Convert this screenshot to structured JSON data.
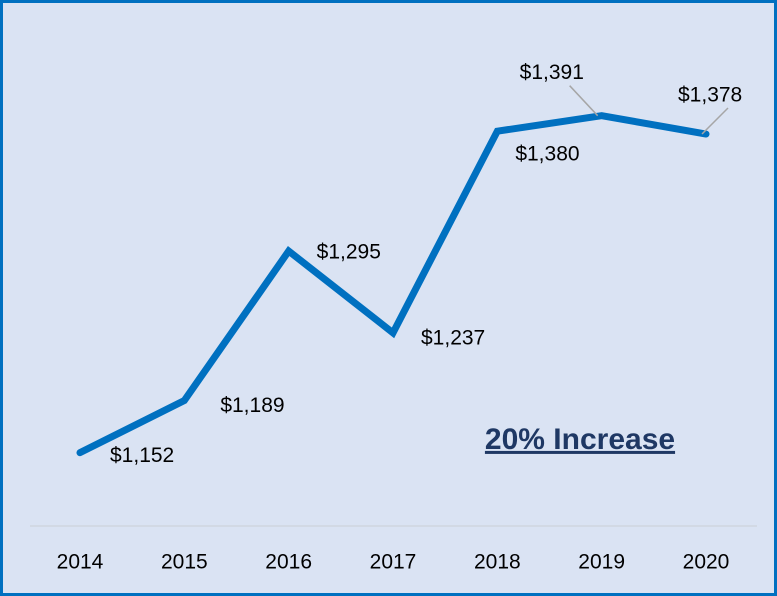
{
  "chart_data": {
    "type": "line",
    "categories": [
      "2014",
      "2015",
      "2016",
      "2017",
      "2018",
      "2019",
      "2020"
    ],
    "series": [
      {
        "color": "#0070c0",
        "values": [
          1152,
          1189,
          1295,
          1237,
          1380,
          1391,
          1378
        ],
        "value_labels": [
          "$1,152",
          "$1,189",
          "$1,295",
          "$1,237",
          "$1,380",
          "$1,391",
          "$1,378"
        ]
      }
    ],
    "ylim": [
      1100,
      1400
    ],
    "annotation": "20% Increase"
  }
}
